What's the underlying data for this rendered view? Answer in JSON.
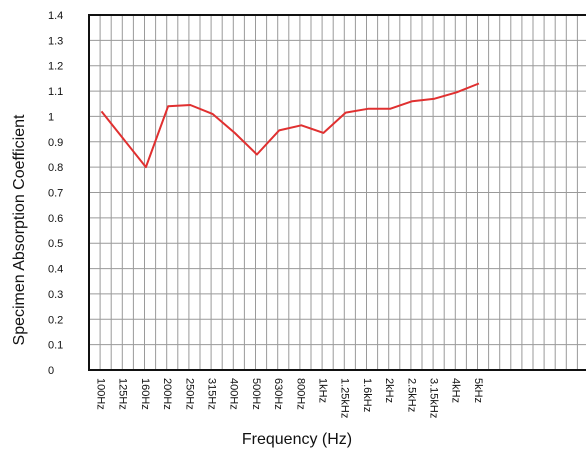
{
  "chart_data": {
    "type": "line",
    "title": "",
    "xlabel": "Frequency (Hz)",
    "ylabel": "Specimen Absorption Coefficient",
    "ylim": [
      0,
      1.4
    ],
    "yticks": [
      "0",
      "0.1",
      "0.2",
      "0.3",
      "0.4",
      "0.5",
      "0.6",
      "0.7",
      "0.8",
      "0.9",
      "1",
      "1.1",
      "1.2",
      "1.3",
      "1.4"
    ],
    "grid": true,
    "categories": [
      "100Hz",
      "125Hz",
      "160Hz",
      "200Hz",
      "250Hz",
      "315Hz",
      "400Hz",
      "500Hz",
      "630Hz",
      "800Hz",
      "1kHz",
      "1.25kHz",
      "1.6kHz",
      "2kHz",
      "2.5kHz",
      "3.15kHz",
      "4kHz",
      "5kHz"
    ],
    "series": [
      {
        "color": "#e03030",
        "values": [
          1.02,
          0.91,
          0.8,
          1.04,
          1.045,
          1.01,
          0.935,
          0.85,
          0.945,
          0.965,
          0.935,
          1.015,
          1.03,
          1.03,
          1.06,
          1.07,
          1.095,
          1.13
        ]
      }
    ]
  }
}
